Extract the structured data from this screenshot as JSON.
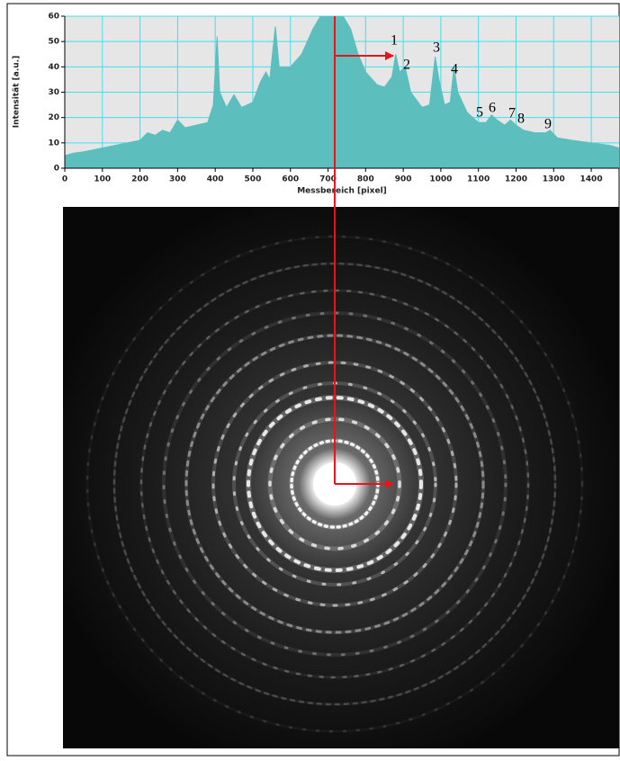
{
  "chart_data": {
    "type": "area",
    "ylabel": "Intensität [a.u.]",
    "xlabel": "Messbereich [pixel]",
    "x": [
      0,
      25,
      50,
      100,
      150,
      200,
      220,
      240,
      260,
      280,
      300,
      320,
      350,
      380,
      395,
      405,
      412,
      430,
      450,
      470,
      500,
      520,
      535,
      545,
      560,
      570,
      600,
      630,
      660,
      680,
      700,
      720,
      740,
      760,
      780,
      800,
      830,
      850,
      870,
      880,
      890,
      905,
      920,
      950,
      970,
      985,
      995,
      1010,
      1025,
      1035,
      1045,
      1070,
      1100,
      1120,
      1135,
      1150,
      1170,
      1185,
      1200,
      1220,
      1250,
      1280,
      1290,
      1310,
      1350,
      1400,
      1450,
      1474
    ],
    "values": [
      5,
      6,
      6.5,
      8,
      9.5,
      11,
      14,
      13,
      15,
      14,
      19,
      16,
      17,
      18,
      25,
      52,
      30,
      24,
      29,
      24,
      26,
      34,
      38,
      35,
      56,
      40,
      40,
      45,
      55,
      60,
      60,
      60,
      60,
      55,
      45,
      38,
      33,
      32,
      36,
      45,
      38,
      40,
      30,
      24,
      25,
      44,
      35,
      25,
      26,
      40,
      30,
      22,
      18,
      18,
      21,
      19,
      17,
      19,
      17,
      15,
      14,
      14,
      15,
      12,
      11,
      10,
      9,
      8
    ],
    "color": "#5cbfbd",
    "xlim": [
      0,
      1474
    ],
    "xticks": [
      0,
      100,
      200,
      300,
      400,
      500,
      600,
      700,
      800,
      900,
      1000,
      1100,
      1200,
      1300,
      1400
    ],
    "ylim": [
      0,
      60
    ],
    "yticks": [
      0,
      10,
      20,
      30,
      40,
      50,
      60
    ],
    "grid": true,
    "annotations": [
      "1",
      "2",
      "3",
      "4",
      "5",
      "6",
      "7",
      "8",
      "9"
    ]
  }
}
